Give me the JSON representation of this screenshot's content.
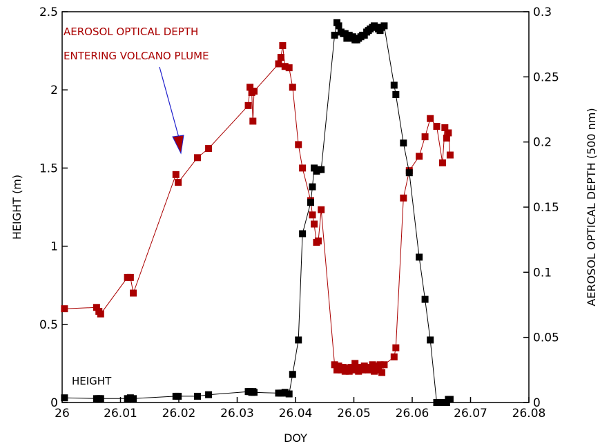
{
  "chart_data": {
    "type": "line",
    "xlabel": "DOY",
    "ylabel_left": "HEIGHT (m)",
    "ylabel_right": "AEROSOL OPTICAL DEPTH (500 nm)",
    "xlim": [
      26,
      26.08
    ],
    "ylim_left": [
      0,
      2.5
    ],
    "ylim_right": [
      0,
      0.3
    ],
    "x_ticks": [
      "26",
      "26.01",
      "26.02",
      "26.03",
      "26.04",
      "26.05",
      "26.06",
      "26.07",
      "26.08"
    ],
    "y_left_ticks": [
      "0",
      "0.5",
      "1",
      "1.5",
      "2",
      "2.5"
    ],
    "y_right_ticks": [
      "0",
      "0.05",
      "0.1",
      "0.15",
      "0.2",
      "0.25",
      "0.3"
    ],
    "grid": false,
    "annotations": {
      "line1": "AEROSOL OPTICAL DEPTH",
      "line2": "ENTERING VOLCANO PLUME",
      "height_label": "HEIGHT"
    },
    "series": [
      {
        "axis": "right",
        "color": "#aa0000",
        "x": [
          26.0004,
          26.0059,
          26.0063,
          26.0066,
          26.0112,
          26.0117,
          26.0122,
          26.0195,
          26.0199,
          26.0232,
          26.0251,
          26.0319,
          26.0322,
          26.0325,
          26.0327,
          26.0329,
          26.0371,
          26.0375,
          26.0378,
          26.0382,
          26.0389,
          26.0395,
          26.0405,
          26.0412,
          26.0426,
          26.0429,
          26.0432,
          26.0436,
          26.0439,
          26.0444,
          26.0467,
          26.0471,
          26.0474,
          26.0478,
          26.0482,
          26.0485,
          26.0488,
          26.0492,
          26.0495,
          26.0498,
          26.0502,
          26.0505,
          26.0508,
          26.0512,
          26.0515,
          26.0518,
          26.0522,
          26.0525,
          26.0528,
          26.0532,
          26.0535,
          26.0538,
          26.0542,
          26.0545,
          26.0548,
          26.0552,
          26.0569,
          26.0572,
          26.0585,
          26.0595,
          26.0612,
          26.0622,
          26.0631,
          26.0642,
          26.0652,
          26.0656,
          26.0659,
          26.0662,
          26.0665
        ],
        "y": [
          0.072,
          0.073,
          0.07,
          0.068,
          0.096,
          0.096,
          0.084,
          0.175,
          0.169,
          0.188,
          0.195,
          0.228,
          0.242,
          0.238,
          0.216,
          0.239,
          0.26,
          0.265,
          0.274,
          0.258,
          0.257,
          0.242,
          0.198,
          0.18,
          0.155,
          0.144,
          0.137,
          0.123,
          0.124,
          0.148,
          0.029,
          0.025,
          0.028,
          0.025,
          0.027,
          0.024,
          0.026,
          0.024,
          0.027,
          0.025,
          0.03,
          0.026,
          0.024,
          0.027,
          0.025,
          0.028,
          0.026,
          0.025,
          0.027,
          0.029,
          0.024,
          0.028,
          0.025,
          0.029,
          0.023,
          0.029,
          0.035,
          0.042,
          0.157,
          0.178,
          0.189,
          0.204,
          0.218,
          0.212,
          0.184,
          0.211,
          0.203,
          0.207,
          0.19
        ]
      },
      {
        "axis": "left",
        "color": "#000000",
        "x": [
          26.0004,
          26.0059,
          26.0063,
          26.0066,
          26.0112,
          26.0117,
          26.0122,
          26.0195,
          26.0199,
          26.0232,
          26.0251,
          26.0319,
          26.0322,
          26.0325,
          26.0327,
          26.0329,
          26.0371,
          26.0375,
          26.0378,
          26.0382,
          26.0389,
          26.0395,
          26.0405,
          26.0412,
          26.0426,
          26.0429,
          26.0432,
          26.0436,
          26.0439,
          26.0444,
          26.0467,
          26.0471,
          26.0474,
          26.0478,
          26.0482,
          26.0485,
          26.0488,
          26.0492,
          26.0495,
          26.0498,
          26.0502,
          26.0505,
          26.0508,
          26.0512,
          26.0515,
          26.0518,
          26.0522,
          26.0525,
          26.0528,
          26.0532,
          26.0535,
          26.0538,
          26.0542,
          26.0545,
          26.0548,
          26.0552,
          26.0569,
          26.0572,
          26.0585,
          26.0595,
          26.0612,
          26.0622,
          26.0631,
          26.0642,
          26.0652,
          26.0656,
          26.0659,
          26.0662,
          26.0665
        ],
        "y": [
          0.03,
          0.025,
          0.025,
          0.025,
          0.025,
          0.03,
          0.025,
          0.04,
          0.04,
          0.04,
          0.05,
          0.07,
          0.07,
          0.065,
          0.07,
          0.065,
          0.06,
          0.06,
          0.06,
          0.065,
          0.055,
          0.18,
          0.4,
          1.08,
          1.28,
          1.38,
          1.5,
          1.48,
          1.49,
          1.49,
          2.35,
          2.43,
          2.41,
          2.37,
          2.36,
          2.36,
          2.33,
          2.35,
          2.33,
          2.34,
          2.32,
          2.32,
          2.33,
          2.34,
          2.35,
          2.35,
          2.37,
          2.38,
          2.39,
          2.4,
          2.41,
          2.4,
          2.39,
          2.38,
          2.4,
          2.41,
          2.03,
          1.97,
          1.66,
          1.47,
          0.93,
          0.66,
          0.4,
          0.0,
          0.0,
          0.0,
          0.0,
          0.02,
          0.02
        ]
      }
    ]
  }
}
